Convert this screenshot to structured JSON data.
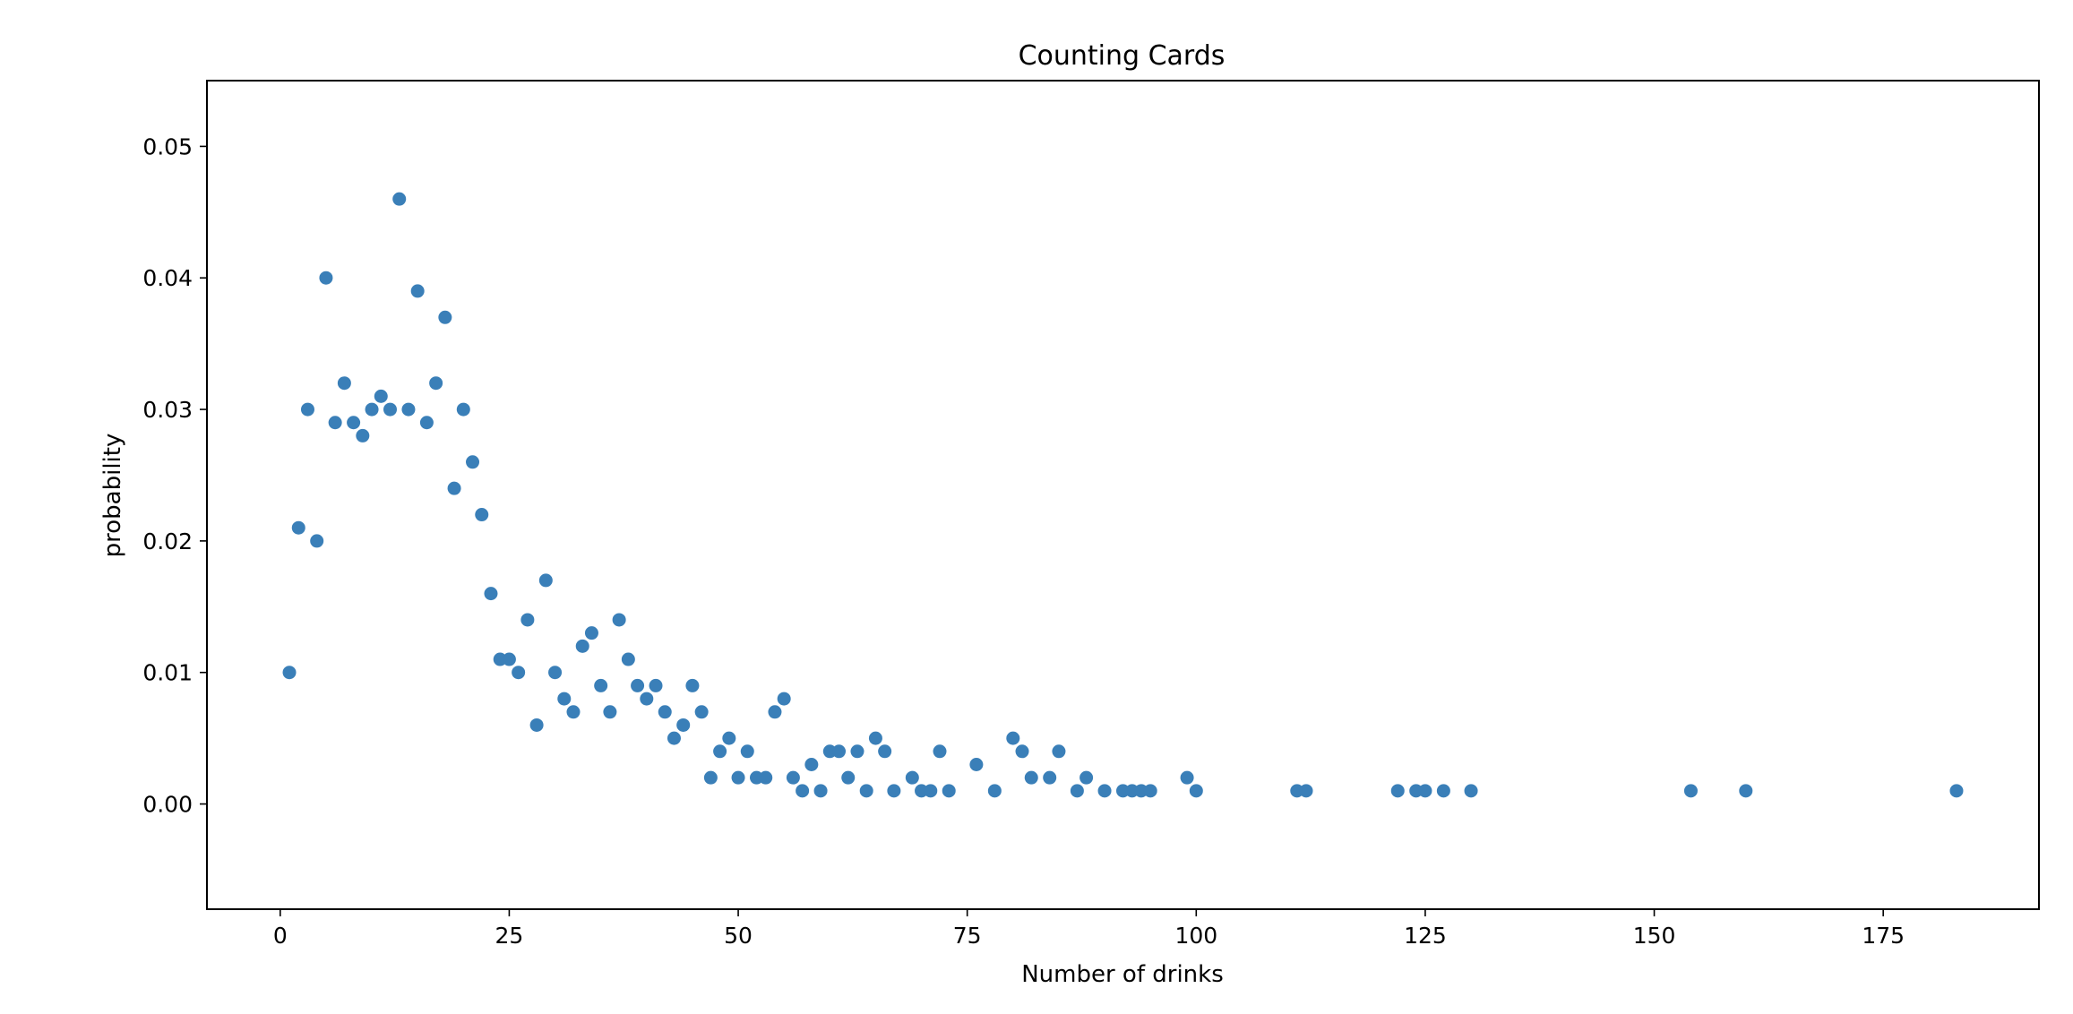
{
  "chart_data": {
    "type": "scatter",
    "title": "Counting Cards",
    "xlabel": "Number of drinks",
    "ylabel": "probability",
    "xlim": [
      -8,
      192
    ],
    "ylim": [
      -0.008,
      0.055
    ],
    "x_ticks": [
      0,
      25,
      50,
      75,
      100,
      125,
      150,
      175
    ],
    "y_ticks": [
      0.0,
      0.01,
      0.02,
      0.03,
      0.04,
      0.05
    ],
    "x_tick_labels": [
      "0",
      "25",
      "50",
      "75",
      "100",
      "125",
      "150",
      "175"
    ],
    "y_tick_labels": [
      "0.00",
      "0.01",
      "0.02",
      "0.03",
      "0.04",
      "0.05"
    ],
    "grid": false,
    "marker_color": "#3a7fb8",
    "points": [
      {
        "x": 1,
        "y": 0.01
      },
      {
        "x": 2,
        "y": 0.021
      },
      {
        "x": 3,
        "y": 0.03
      },
      {
        "x": 4,
        "y": 0.02
      },
      {
        "x": 5,
        "y": 0.04
      },
      {
        "x": 6,
        "y": 0.029
      },
      {
        "x": 7,
        "y": 0.032
      },
      {
        "x": 8,
        "y": 0.029
      },
      {
        "x": 9,
        "y": 0.028
      },
      {
        "x": 10,
        "y": 0.03
      },
      {
        "x": 11,
        "y": 0.031
      },
      {
        "x": 12,
        "y": 0.03
      },
      {
        "x": 13,
        "y": 0.046
      },
      {
        "x": 14,
        "y": 0.03
      },
      {
        "x": 15,
        "y": 0.039
      },
      {
        "x": 16,
        "y": 0.029
      },
      {
        "x": 17,
        "y": 0.032
      },
      {
        "x": 18,
        "y": 0.037
      },
      {
        "x": 19,
        "y": 0.024
      },
      {
        "x": 20,
        "y": 0.03
      },
      {
        "x": 21,
        "y": 0.026
      },
      {
        "x": 22,
        "y": 0.022
      },
      {
        "x": 23,
        "y": 0.016
      },
      {
        "x": 24,
        "y": 0.011
      },
      {
        "x": 25,
        "y": 0.011
      },
      {
        "x": 26,
        "y": 0.01
      },
      {
        "x": 27,
        "y": 0.014
      },
      {
        "x": 28,
        "y": 0.006
      },
      {
        "x": 29,
        "y": 0.017
      },
      {
        "x": 30,
        "y": 0.01
      },
      {
        "x": 31,
        "y": 0.008
      },
      {
        "x": 32,
        "y": 0.007
      },
      {
        "x": 33,
        "y": 0.012
      },
      {
        "x": 34,
        "y": 0.013
      },
      {
        "x": 35,
        "y": 0.009
      },
      {
        "x": 36,
        "y": 0.007
      },
      {
        "x": 37,
        "y": 0.014
      },
      {
        "x": 38,
        "y": 0.011
      },
      {
        "x": 39,
        "y": 0.009
      },
      {
        "x": 40,
        "y": 0.008
      },
      {
        "x": 41,
        "y": 0.009
      },
      {
        "x": 42,
        "y": 0.007
      },
      {
        "x": 43,
        "y": 0.005
      },
      {
        "x": 44,
        "y": 0.006
      },
      {
        "x": 45,
        "y": 0.009
      },
      {
        "x": 46,
        "y": 0.007
      },
      {
        "x": 47,
        "y": 0.002
      },
      {
        "x": 48,
        "y": 0.004
      },
      {
        "x": 49,
        "y": 0.005
      },
      {
        "x": 50,
        "y": 0.002
      },
      {
        "x": 51,
        "y": 0.004
      },
      {
        "x": 52,
        "y": 0.002
      },
      {
        "x": 53,
        "y": 0.002
      },
      {
        "x": 54,
        "y": 0.007
      },
      {
        "x": 55,
        "y": 0.008
      },
      {
        "x": 56,
        "y": 0.002
      },
      {
        "x": 57,
        "y": 0.001
      },
      {
        "x": 58,
        "y": 0.003
      },
      {
        "x": 59,
        "y": 0.001
      },
      {
        "x": 60,
        "y": 0.004
      },
      {
        "x": 61,
        "y": 0.004
      },
      {
        "x": 62,
        "y": 0.002
      },
      {
        "x": 63,
        "y": 0.004
      },
      {
        "x": 64,
        "y": 0.001
      },
      {
        "x": 65,
        "y": 0.005
      },
      {
        "x": 66,
        "y": 0.004
      },
      {
        "x": 67,
        "y": 0.001
      },
      {
        "x": 69,
        "y": 0.002
      },
      {
        "x": 70,
        "y": 0.001
      },
      {
        "x": 71,
        "y": 0.001
      },
      {
        "x": 72,
        "y": 0.004
      },
      {
        "x": 73,
        "y": 0.001
      },
      {
        "x": 76,
        "y": 0.003
      },
      {
        "x": 78,
        "y": 0.001
      },
      {
        "x": 80,
        "y": 0.005
      },
      {
        "x": 81,
        "y": 0.004
      },
      {
        "x": 82,
        "y": 0.002
      },
      {
        "x": 84,
        "y": 0.002
      },
      {
        "x": 85,
        "y": 0.004
      },
      {
        "x": 87,
        "y": 0.001
      },
      {
        "x": 88,
        "y": 0.002
      },
      {
        "x": 90,
        "y": 0.001
      },
      {
        "x": 92,
        "y": 0.001
      },
      {
        "x": 93,
        "y": 0.001
      },
      {
        "x": 94,
        "y": 0.001
      },
      {
        "x": 95,
        "y": 0.001
      },
      {
        "x": 99,
        "y": 0.002
      },
      {
        "x": 100,
        "y": 0.001
      },
      {
        "x": 111,
        "y": 0.001
      },
      {
        "x": 112,
        "y": 0.001
      },
      {
        "x": 122,
        "y": 0.001
      },
      {
        "x": 124,
        "y": 0.001
      },
      {
        "x": 125,
        "y": 0.001
      },
      {
        "x": 127,
        "y": 0.001
      },
      {
        "x": 130,
        "y": 0.001
      },
      {
        "x": 154,
        "y": 0.001
      },
      {
        "x": 160,
        "y": 0.001
      },
      {
        "x": 183,
        "y": 0.001
      }
    ]
  }
}
